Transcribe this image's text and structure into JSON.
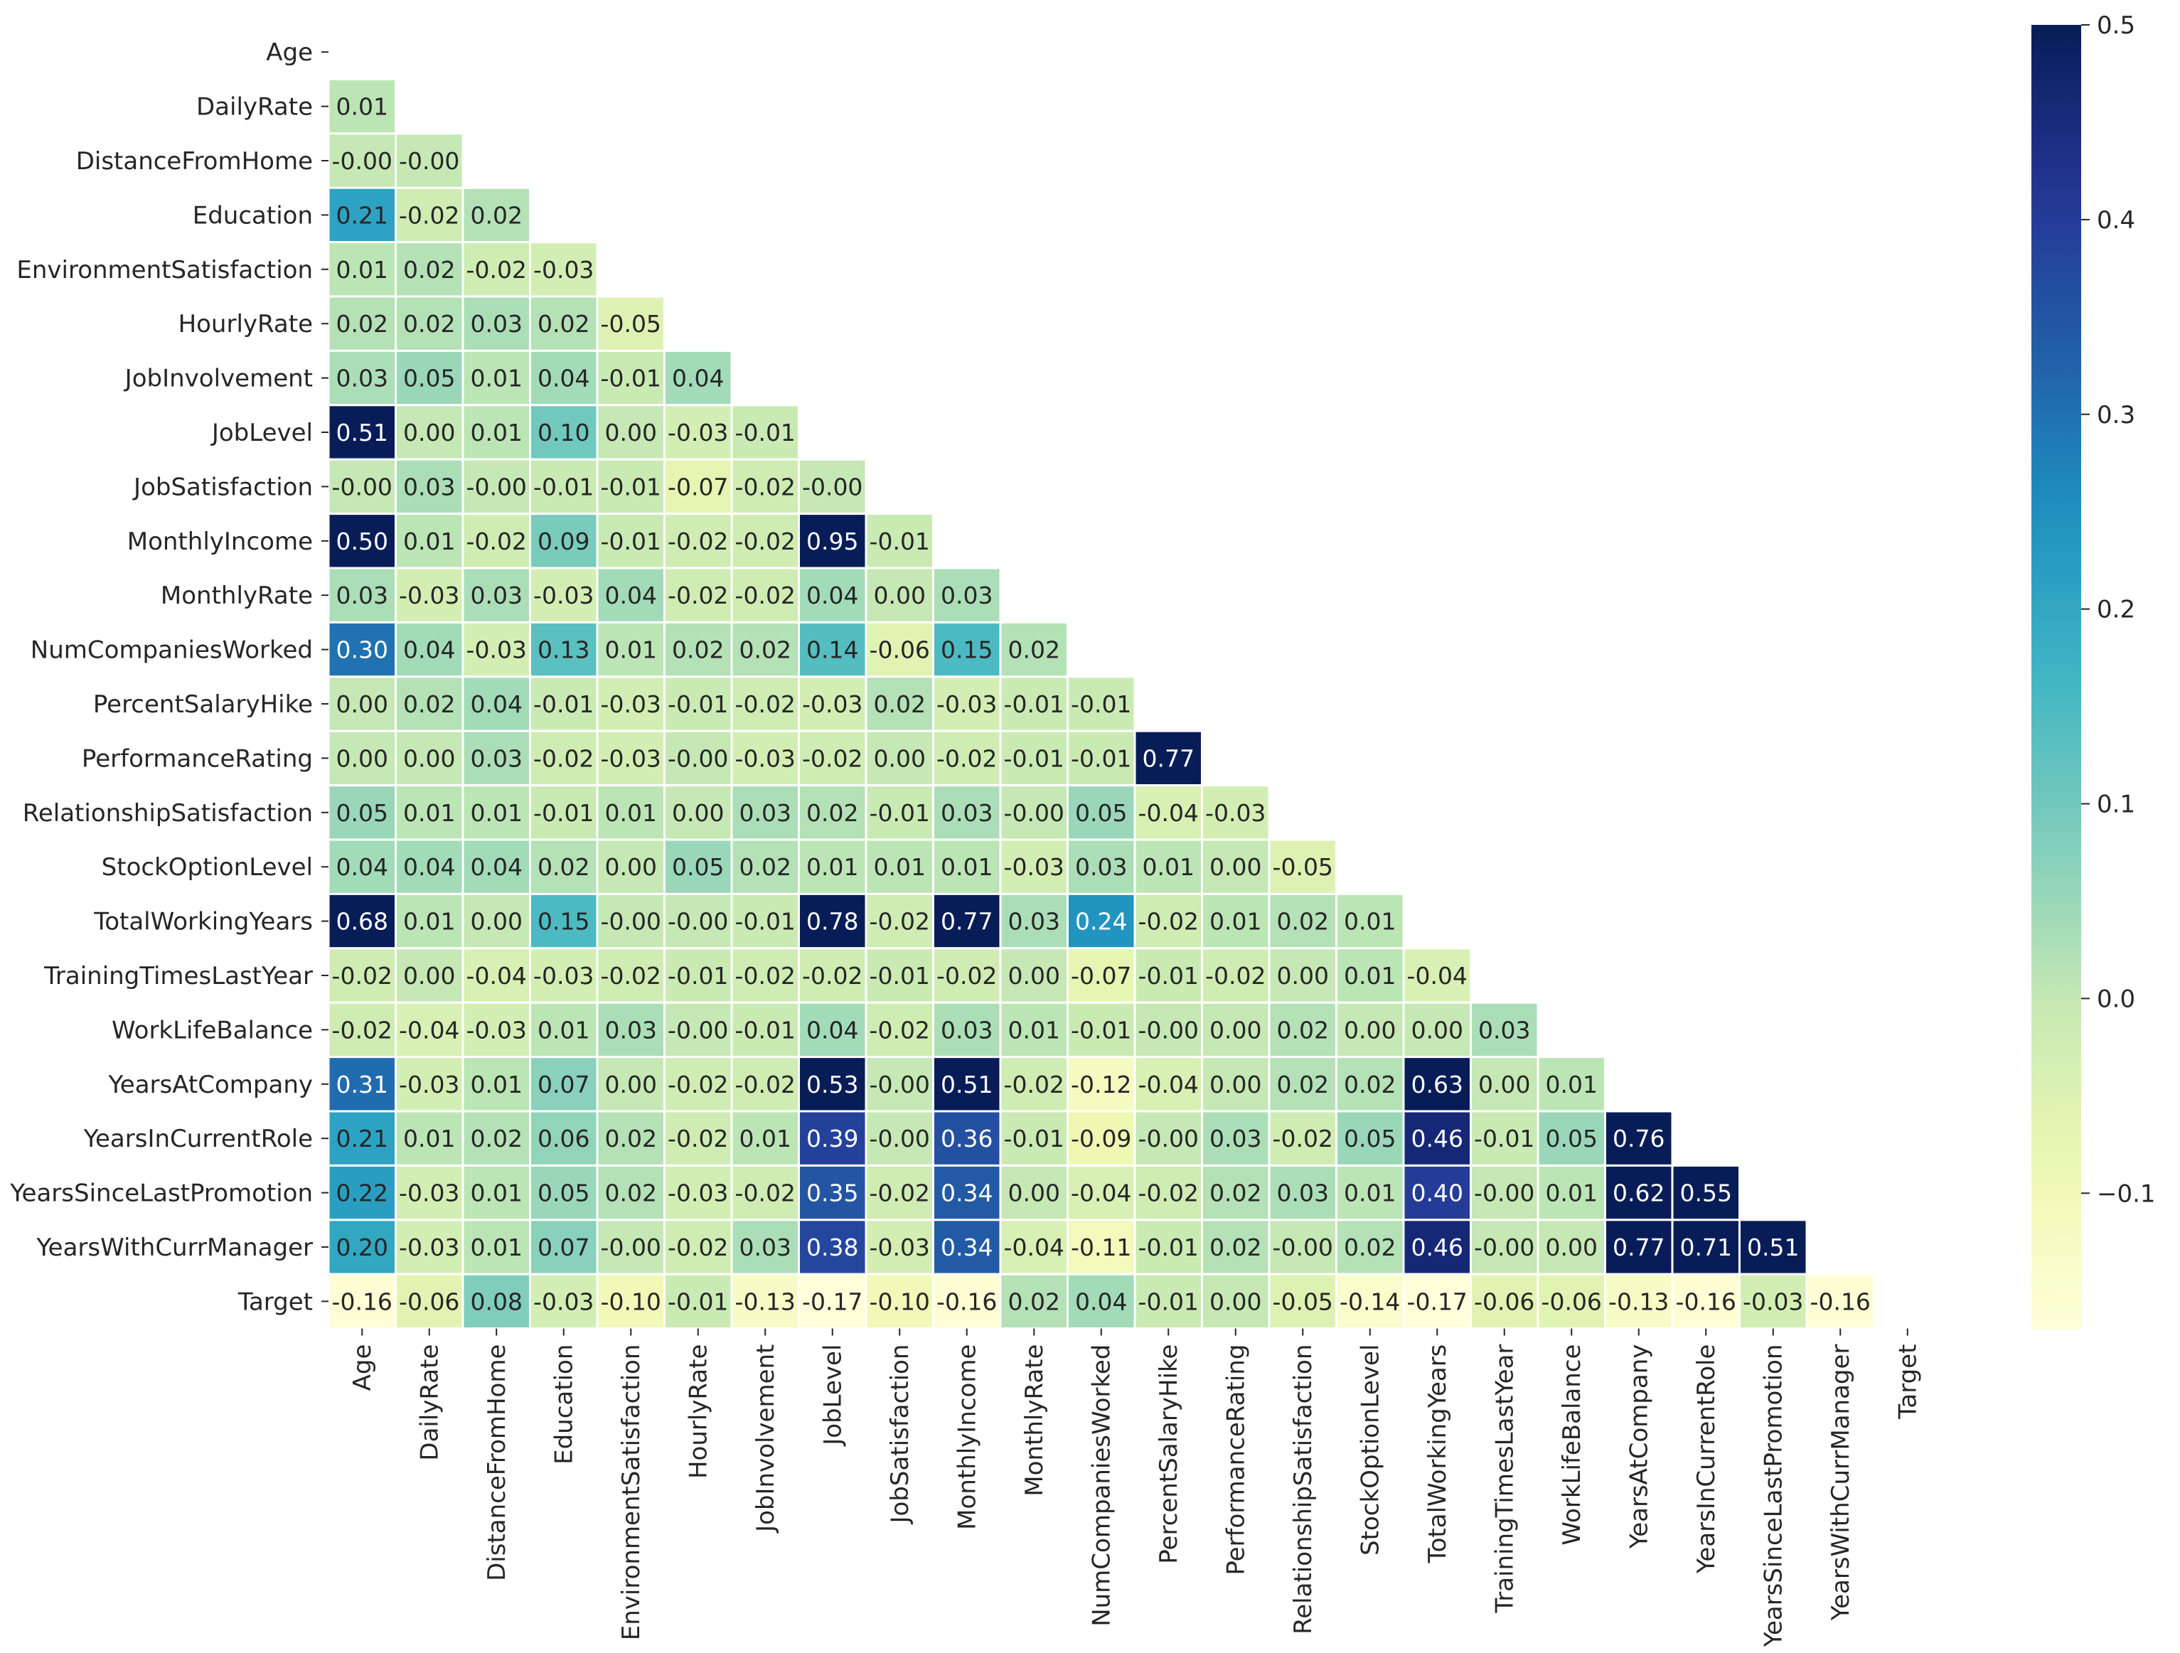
{
  "chart_data": {
    "type": "heatmap",
    "title": "",
    "mask": "upper-triangle",
    "colormap": "YlGnBu",
    "cmap_stops": [
      {
        "v": 0.0,
        "color": "#ffffd9"
      },
      {
        "v": 0.125,
        "color": "#edf8b1"
      },
      {
        "v": 0.25,
        "color": "#c7e9b4"
      },
      {
        "v": 0.375,
        "color": "#7fcdbb"
      },
      {
        "v": 0.5,
        "color": "#41b6c4"
      },
      {
        "v": 0.625,
        "color": "#1d91c0"
      },
      {
        "v": 0.75,
        "color": "#225ea8"
      },
      {
        "v": 0.875,
        "color": "#253494"
      },
      {
        "v": 1.0,
        "color": "#081d58"
      }
    ],
    "vmin": -0.17,
    "vmax": 0.5,
    "colorbar_ticks": [
      "0.5",
      "0.4",
      "0.3",
      "0.2",
      "0.1",
      "0.0",
      "−0.1"
    ],
    "colorbar_tick_values": [
      0.5,
      0.4,
      0.3,
      0.2,
      0.1,
      0.0,
      -0.1
    ],
    "grid_color": "#ffffff",
    "row_labels": [
      "Age",
      "DailyRate",
      "DistanceFromHome",
      "Education",
      "EnvironmentSatisfaction",
      "HourlyRate",
      "JobInvolvement",
      "JobLevel",
      "JobSatisfaction",
      "MonthlyIncome",
      "MonthlyRate",
      "NumCompaniesWorked",
      "PercentSalaryHike",
      "PerformanceRating",
      "RelationshipSatisfaction",
      "StockOptionLevel",
      "TotalWorkingYears",
      "TrainingTimesLastYear",
      "WorkLifeBalance",
      "YearsAtCompany",
      "YearsInCurrentRole",
      "YearsSinceLastPromotion",
      "YearsWithCurrManager",
      "Target"
    ],
    "col_labels": [
      "Age",
      "DailyRate",
      "DistanceFromHome",
      "Education",
      "EnvironmentSatisfaction",
      "HourlyRate",
      "JobInvolvement",
      "JobLevel",
      "JobSatisfaction",
      "MonthlyIncome",
      "MonthlyRate",
      "NumCompaniesWorked",
      "PercentSalaryHike",
      "PerformanceRating",
      "RelationshipSatisfaction",
      "StockOptionLevel",
      "TotalWorkingYears",
      "TrainingTimesLastYear",
      "WorkLifeBalance",
      "YearsAtCompany",
      "YearsInCurrentRole",
      "YearsSinceLastPromotion",
      "YearsWithCurrManager",
      "Target"
    ],
    "rows": [
      [],
      [
        "0.01"
      ],
      [
        "-0.00",
        "-0.00"
      ],
      [
        "0.21",
        "-0.02",
        "0.02"
      ],
      [
        "0.01",
        "0.02",
        "-0.02",
        "-0.03"
      ],
      [
        "0.02",
        "0.02",
        "0.03",
        "0.02",
        "-0.05"
      ],
      [
        "0.03",
        "0.05",
        "0.01",
        "0.04",
        "-0.01",
        "0.04"
      ],
      [
        "0.51",
        "0.00",
        "0.01",
        "0.10",
        "0.00",
        "-0.03",
        "-0.01"
      ],
      [
        "-0.00",
        "0.03",
        "-0.00",
        "-0.01",
        "-0.01",
        "-0.07",
        "-0.02",
        "-0.00"
      ],
      [
        "0.50",
        "0.01",
        "-0.02",
        "0.09",
        "-0.01",
        "-0.02",
        "-0.02",
        "0.95",
        "-0.01"
      ],
      [
        "0.03",
        "-0.03",
        "0.03",
        "-0.03",
        "0.04",
        "-0.02",
        "-0.02",
        "0.04",
        "0.00",
        "0.03"
      ],
      [
        "0.30",
        "0.04",
        "-0.03",
        "0.13",
        "0.01",
        "0.02",
        "0.02",
        "0.14",
        "-0.06",
        "0.15",
        "0.02"
      ],
      [
        "0.00",
        "0.02",
        "0.04",
        "-0.01",
        "-0.03",
        "-0.01",
        "-0.02",
        "-0.03",
        "0.02",
        "-0.03",
        "-0.01",
        "-0.01"
      ],
      [
        "0.00",
        "0.00",
        "0.03",
        "-0.02",
        "-0.03",
        "-0.00",
        "-0.03",
        "-0.02",
        "0.00",
        "-0.02",
        "-0.01",
        "-0.01",
        "0.77"
      ],
      [
        "0.05",
        "0.01",
        "0.01",
        "-0.01",
        "0.01",
        "0.00",
        "0.03",
        "0.02",
        "-0.01",
        "0.03",
        "-0.00",
        "0.05",
        "-0.04",
        "-0.03"
      ],
      [
        "0.04",
        "0.04",
        "0.04",
        "0.02",
        "0.00",
        "0.05",
        "0.02",
        "0.01",
        "0.01",
        "0.01",
        "-0.03",
        "0.03",
        "0.01",
        "0.00",
        "-0.05"
      ],
      [
        "0.68",
        "0.01",
        "0.00",
        "0.15",
        "-0.00",
        "-0.00",
        "-0.01",
        "0.78",
        "-0.02",
        "0.77",
        "0.03",
        "0.24",
        "-0.02",
        "0.01",
        "0.02",
        "0.01"
      ],
      [
        "-0.02",
        "0.00",
        "-0.04",
        "-0.03",
        "-0.02",
        "-0.01",
        "-0.02",
        "-0.02",
        "-0.01",
        "-0.02",
        "0.00",
        "-0.07",
        "-0.01",
        "-0.02",
        "0.00",
        "0.01",
        "-0.04"
      ],
      [
        "-0.02",
        "-0.04",
        "-0.03",
        "0.01",
        "0.03",
        "-0.00",
        "-0.01",
        "0.04",
        "-0.02",
        "0.03",
        "0.01",
        "-0.01",
        "-0.00",
        "0.00",
        "0.02",
        "0.00",
        "0.00",
        "0.03"
      ],
      [
        "0.31",
        "-0.03",
        "0.01",
        "0.07",
        "0.00",
        "-0.02",
        "-0.02",
        "0.53",
        "-0.00",
        "0.51",
        "-0.02",
        "-0.12",
        "-0.04",
        "0.00",
        "0.02",
        "0.02",
        "0.63",
        "0.00",
        "0.01"
      ],
      [
        "0.21",
        "0.01",
        "0.02",
        "0.06",
        "0.02",
        "-0.02",
        "0.01",
        "0.39",
        "-0.00",
        "0.36",
        "-0.01",
        "-0.09",
        "-0.00",
        "0.03",
        "-0.02",
        "0.05",
        "0.46",
        "-0.01",
        "0.05",
        "0.76"
      ],
      [
        "0.22",
        "-0.03",
        "0.01",
        "0.05",
        "0.02",
        "-0.03",
        "-0.02",
        "0.35",
        "-0.02",
        "0.34",
        "0.00",
        "-0.04",
        "-0.02",
        "0.02",
        "0.03",
        "0.01",
        "0.40",
        "-0.00",
        "0.01",
        "0.62",
        "0.55"
      ],
      [
        "0.20",
        "-0.03",
        "0.01",
        "0.07",
        "-0.00",
        "-0.02",
        "0.03",
        "0.38",
        "-0.03",
        "0.34",
        "-0.04",
        "-0.11",
        "-0.01",
        "0.02",
        "-0.00",
        "0.02",
        "0.46",
        "-0.00",
        "0.00",
        "0.77",
        "0.71",
        "0.51"
      ],
      [
        "-0.16",
        "-0.06",
        "0.08",
        "-0.03",
        "-0.10",
        "-0.01",
        "-0.13",
        "-0.17",
        "-0.10",
        "-0.16",
        "0.02",
        "0.04",
        "-0.01",
        "0.00",
        "-0.05",
        "-0.14",
        "-0.17",
        "-0.06",
        "-0.06",
        "-0.13",
        "-0.16",
        "-0.03",
        "-0.16"
      ]
    ]
  }
}
